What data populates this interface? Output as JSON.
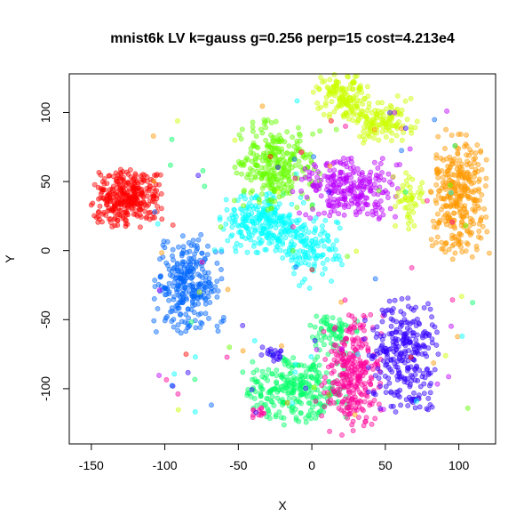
{
  "chart_data": {
    "type": "scatter",
    "title": "mnist6k LV k=gauss g=0.256 perp=15 cost=4.213e4",
    "xlabel": "X",
    "ylabel": "Y",
    "xlim": [
      -165,
      125
    ],
    "ylim": [
      -140,
      128
    ],
    "x_ticks": [
      -150,
      -100,
      -50,
      0,
      50,
      100
    ],
    "x_tick_labels": [
      "-150",
      "-100",
      "-50",
      "0",
      "50",
      "100"
    ],
    "y_ticks": [
      -100,
      -50,
      0,
      50,
      100
    ],
    "y_tick_labels": [
      "-100",
      "-50",
      "0",
      "50",
      "100"
    ],
    "grid": false,
    "point_opacity": 0.45,
    "clusters": [
      {
        "color": "#ff0000",
        "cx": -126,
        "cy": 38,
        "sx": 11,
        "sy": 10,
        "n": 320
      },
      {
        "color": "#0066ff",
        "cx": -84,
        "cy": -25,
        "sx": 11,
        "sy": 17,
        "n": 280
      },
      {
        "color": "#00ffff",
        "cx": -30,
        "cy": 20,
        "sx": 15,
        "sy": 10,
        "n": 260
      },
      {
        "color": "#00ffff",
        "cx": 0,
        "cy": 0,
        "sx": 10,
        "sy": 12,
        "n": 120
      },
      {
        "color": "#66ff00",
        "cx": -25,
        "cy": 62,
        "sx": 14,
        "sy": 15,
        "n": 280
      },
      {
        "color": "#bb00ff",
        "cx": 25,
        "cy": 45,
        "sx": 16,
        "sy": 10,
        "n": 250
      },
      {
        "color": "#ccff00",
        "cx": 20,
        "cy": 112,
        "sx": 9,
        "sy": 8,
        "n": 140
      },
      {
        "color": "#ccff00",
        "cx": 48,
        "cy": 95,
        "sx": 11,
        "sy": 8,
        "n": 130
      },
      {
        "color": "#ccff00",
        "cx": 65,
        "cy": 35,
        "sx": 5,
        "sy": 10,
        "n": 50
      },
      {
        "color": "#ff9900",
        "cx": 100,
        "cy": 40,
        "sx": 9,
        "sy": 22,
        "n": 320
      },
      {
        "color": "#00ff66",
        "cx": -10,
        "cy": -100,
        "sx": 17,
        "sy": 12,
        "n": 280
      },
      {
        "color": "#00ff66",
        "cx": 15,
        "cy": -60,
        "sx": 8,
        "sy": 7,
        "n": 70
      },
      {
        "color": "#ff0099",
        "cx": 27,
        "cy": -90,
        "sx": 10,
        "sy": 20,
        "n": 280
      },
      {
        "color": "#3300ff",
        "cx": 62,
        "cy": -75,
        "sx": 11,
        "sy": 20,
        "n": 280
      },
      {
        "color": "#3300ff",
        "cx": -27,
        "cy": -75,
        "sx": 4,
        "sy": 3,
        "n": 20
      },
      {
        "color": "#ff0099",
        "cx": -35,
        "cy": -118,
        "sx": 3,
        "sy": 3,
        "n": 12
      }
    ],
    "noise_colors": [
      "#ff0000",
      "#0066ff",
      "#00ffff",
      "#66ff00",
      "#bb00ff",
      "#ccff00",
      "#ff9900",
      "#00ff66",
      "#ff0099",
      "#3300ff"
    ],
    "noise_n": 120,
    "random_seed": 7
  }
}
